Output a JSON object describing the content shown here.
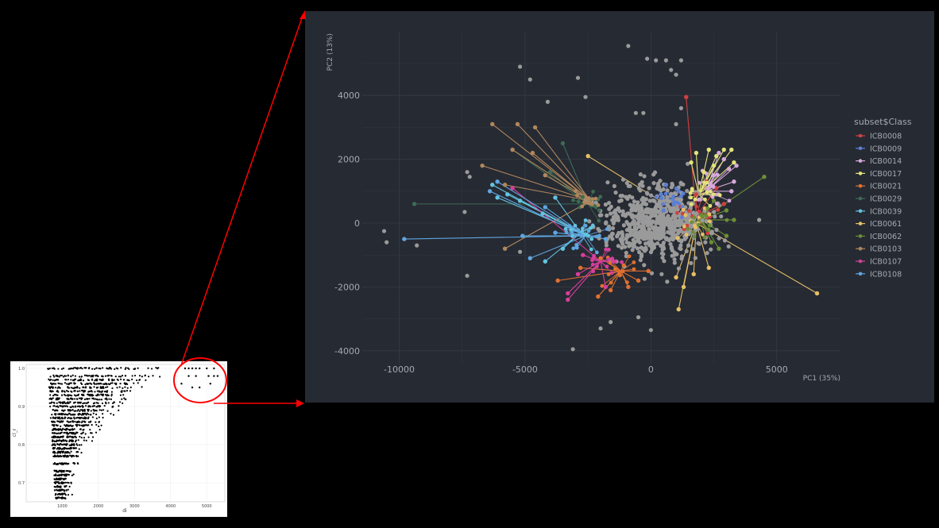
{
  "colors": {
    "page_background": "#000000",
    "right_panel_background": "#262a33",
    "right_panel_grid": "#363b46",
    "right_text": "#a6a9b0",
    "left_panel_background": "#ffffff",
    "left_panel_grid": "#eeeeee",
    "left_points": "#000000",
    "annotation": "#ff0000",
    "grey_points": "#9a9a9a"
  },
  "annotation": {
    "description": "red circle on small plot with arrows pointing to zoomed PCA plot"
  },
  "chart_data": [
    {
      "id": "small-scatter",
      "type": "scatter",
      "title": "",
      "xlabel": "di",
      "ylabel": "cl_r",
      "xlim": [
        0,
        5500
      ],
      "ylim": [
        0.65,
        1.0
      ],
      "xticks": [
        "1000",
        "2000",
        "3000",
        "4000",
        "5000"
      ],
      "xtick_values": [
        1000,
        2000,
        3000,
        4000,
        5000
      ],
      "yticks": [
        "0.7",
        "0.8",
        "0.9",
        "1.0"
      ],
      "ytick_values": [
        0.7,
        0.8,
        0.9,
        1.0
      ],
      "grid": true,
      "points_description": "dense black point cloud rising from lower-left (x~600-1500, y~0.66-0.75) to upper band near y~0.95-1.0 spanning x~700-5200",
      "highlight_points": [
        {
          "x": 4400,
          "y": 1.0
        },
        {
          "x": 4500,
          "y": 1.0
        },
        {
          "x": 4600,
          "y": 1.0
        },
        {
          "x": 4700,
          "y": 1.0
        },
        {
          "x": 4800,
          "y": 1.0
        },
        {
          "x": 5000,
          "y": 1.0
        },
        {
          "x": 5200,
          "y": 1.0
        },
        {
          "x": 4500,
          "y": 0.98
        },
        {
          "x": 4700,
          "y": 0.98
        },
        {
          "x": 5050,
          "y": 0.98
        },
        {
          "x": 5200,
          "y": 0.98
        },
        {
          "x": 5300,
          "y": 0.98
        },
        {
          "x": 4300,
          "y": 0.96
        },
        {
          "x": 4600,
          "y": 0.95
        },
        {
          "x": 4800,
          "y": 0.95
        },
        {
          "x": 5100,
          "y": 0.96
        }
      ]
    },
    {
      "id": "pca-plot",
      "type": "scatter",
      "title": "",
      "xlabel": "PC1 (35%)",
      "ylabel": "PC2 (13%)",
      "xlim": [
        -11500,
        7500
      ],
      "ylim": [
        -4400,
        5600
      ],
      "xticks": [
        "-10000",
        "-5000",
        "0",
        "5000"
      ],
      "xtick_values": [
        -10000,
        -5000,
        0,
        5000
      ],
      "yticks": [
        "-4000",
        "-2000",
        "0",
        "2000",
        "4000"
      ],
      "ytick_values": [
        -4000,
        -2000,
        0,
        2000,
        4000
      ],
      "grid": true,
      "legend": {
        "title": "subset$Class",
        "placement": "right"
      },
      "outlier_grey_points": [
        {
          "x": -10600,
          "y": -250
        },
        {
          "x": -10500,
          "y": -600
        },
        {
          "x": -9300,
          "y": -700
        },
        {
          "x": -7300,
          "y": 1600
        },
        {
          "x": -7200,
          "y": 1450
        },
        {
          "x": -7300,
          "y": -1650
        },
        {
          "x": -7400,
          "y": 350
        },
        {
          "x": -5200,
          "y": 4900
        },
        {
          "x": -4800,
          "y": 4500
        },
        {
          "x": -2900,
          "y": 4550
        },
        {
          "x": -2600,
          "y": 3950
        },
        {
          "x": -4100,
          "y": 3800
        },
        {
          "x": -3100,
          "y": -3950
        },
        {
          "x": -1600,
          "y": -3100
        },
        {
          "x": -900,
          "y": 5550
        },
        {
          "x": -150,
          "y": 5150
        },
        {
          "x": 200,
          "y": 5100
        },
        {
          "x": 600,
          "y": 5100
        },
        {
          "x": 1200,
          "y": 5100
        },
        {
          "x": 800,
          "y": 4800
        },
        {
          "x": 1000,
          "y": 4650
        },
        {
          "x": -600,
          "y": 3450
        },
        {
          "x": -300,
          "y": 3450
        },
        {
          "x": 1200,
          "y": 3600
        },
        {
          "x": 1000,
          "y": 3100
        },
        {
          "x": 4300,
          "y": 100
        },
        {
          "x": 0,
          "y": -3350
        },
        {
          "x": -500,
          "y": -2950
        },
        {
          "x": -5200,
          "y": -900
        },
        {
          "x": -2000,
          "y": -3300
        }
      ],
      "series": [
        {
          "name": "ICB0008",
          "color": "#d04040",
          "centroid": {
            "x": 1800,
            "y": 200
          },
          "points": [
            {
              "x": 1400,
              "y": 3950
            },
            {
              "x": 2600,
              "y": 1100
            },
            {
              "x": 2900,
              "y": 600
            },
            {
              "x": 2200,
              "y": 1300
            },
            {
              "x": 1800,
              "y": 900
            }
          ]
        },
        {
          "name": "ICB0009",
          "color": "#5b7fd6",
          "centroid": {
            "x": 800,
            "y": 700
          },
          "points": [
            {
              "x": 400,
              "y": 900
            },
            {
              "x": 600,
              "y": 1200
            },
            {
              "x": 1100,
              "y": 1000
            },
            {
              "x": 900,
              "y": 600
            },
            {
              "x": 500,
              "y": 400
            }
          ]
        },
        {
          "name": "ICB0014",
          "color": "#d7a9dc",
          "centroid": {
            "x": 2200,
            "y": 1000
          },
          "points": [
            {
              "x": 2900,
              "y": 2000
            },
            {
              "x": 3100,
              "y": 1700
            },
            {
              "x": 3300,
              "y": 1300
            },
            {
              "x": 3400,
              "y": 1800
            },
            {
              "x": 2700,
              "y": 2200
            },
            {
              "x": 3200,
              "y": 1000
            },
            {
              "x": 2500,
              "y": 1500
            }
          ]
        },
        {
          "name": "ICB0017",
          "color": "#e3e37a",
          "centroid": {
            "x": 1900,
            "y": 900
          },
          "points": [
            {
              "x": 2300,
              "y": 2300
            },
            {
              "x": 2600,
              "y": 2100
            },
            {
              "x": 2900,
              "y": 2300
            },
            {
              "x": 3200,
              "y": 2300
            },
            {
              "x": 1800,
              "y": 2200
            },
            {
              "x": 3300,
              "y": 1900
            },
            {
              "x": 2100,
              "y": 1600
            },
            {
              "x": 1600,
              "y": 1900
            },
            {
              "x": 2500,
              "y": 1800
            }
          ]
        },
        {
          "name": "ICB0021",
          "color": "#e07030",
          "centroid": {
            "x": -1200,
            "y": -1500
          },
          "points": [
            {
              "x": -3700,
              "y": -1800
            },
            {
              "x": -2800,
              "y": -1400
            },
            {
              "x": -2100,
              "y": -2300
            },
            {
              "x": -1600,
              "y": -2100
            },
            {
              "x": -500,
              "y": -1800
            },
            {
              "x": -100,
              "y": -1500
            },
            {
              "x": -2000,
              "y": -1100
            },
            {
              "x": -900,
              "y": -2000
            }
          ]
        },
        {
          "name": "ICB0029",
          "color": "#3d6b54",
          "centroid": {
            "x": -2500,
            "y": 600
          },
          "points": [
            {
              "x": -9400,
              "y": 600
            },
            {
              "x": -3500,
              "y": 2500
            },
            {
              "x": -5500,
              "y": 2300
            },
            {
              "x": -4000,
              "y": 1600
            }
          ]
        },
        {
          "name": "ICB0039",
          "color": "#63c4e0",
          "centroid": {
            "x": -2800,
            "y": -300
          },
          "points": [
            {
              "x": -6300,
              "y": 1200
            },
            {
              "x": -6100,
              "y": 800
            },
            {
              "x": -5200,
              "y": 700
            },
            {
              "x": -4300,
              "y": 300
            },
            {
              "x": -3800,
              "y": 800
            },
            {
              "x": -4200,
              "y": -1200
            },
            {
              "x": -3500,
              "y": -800
            },
            {
              "x": -5700,
              "y": 900
            }
          ]
        },
        {
          "name": "ICB0061",
          "color": "#e6c065",
          "centroid": {
            "x": 1800,
            "y": 0
          },
          "points": [
            {
              "x": 6600,
              "y": -2200
            },
            {
              "x": -2500,
              "y": 2100
            },
            {
              "x": 1100,
              "y": -2700
            },
            {
              "x": 1300,
              "y": -2000
            },
            {
              "x": 1700,
              "y": -1600
            },
            {
              "x": 2300,
              "y": -1400
            },
            {
              "x": 1000,
              "y": -1700
            }
          ]
        },
        {
          "name": "ICB0062",
          "color": "#6b8f35",
          "centroid": {
            "x": 2000,
            "y": 100
          },
          "points": [
            {
              "x": 4500,
              "y": 1450
            },
            {
              "x": 3000,
              "y": -400
            },
            {
              "x": 2700,
              "y": -800
            },
            {
              "x": 3300,
              "y": 100
            },
            {
              "x": 2400,
              "y": -600
            },
            {
              "x": 3000,
              "y": 400
            },
            {
              "x": 2500,
              "y": 700
            }
          ]
        },
        {
          "name": "ICB0103",
          "color": "#b0875c",
          "centroid": {
            "x": -2400,
            "y": 700
          },
          "points": [
            {
              "x": -6300,
              "y": 3100
            },
            {
              "x": -5300,
              "y": 3100
            },
            {
              "x": -4600,
              "y": 3000
            },
            {
              "x": -6700,
              "y": 1800
            },
            {
              "x": -5800,
              "y": 1200
            },
            {
              "x": -5500,
              "y": 2300
            },
            {
              "x": -4700,
              "y": 2200
            },
            {
              "x": -5800,
              "y": -800
            },
            {
              "x": -4200,
              "y": 1500
            }
          ]
        },
        {
          "name": "ICB0107",
          "color": "#d63f9a",
          "centroid": {
            "x": -2000,
            "y": -1200
          },
          "points": [
            {
              "x": -3300,
              "y": -2400
            },
            {
              "x": -3300,
              "y": -2200
            },
            {
              "x": -2900,
              "y": -1600
            },
            {
              "x": -5500,
              "y": 1100
            },
            {
              "x": -2700,
              "y": -1000
            },
            {
              "x": -1800,
              "y": -2000
            },
            {
              "x": -1500,
              "y": -1200
            }
          ]
        },
        {
          "name": "ICB0108",
          "color": "#5fa6e0",
          "centroid": {
            "x": -2600,
            "y": -400
          },
          "points": [
            {
              "x": -9800,
              "y": -500
            },
            {
              "x": -6100,
              "y": 1300
            },
            {
              "x": -6400,
              "y": 1000
            },
            {
              "x": -5100,
              "y": -400
            },
            {
              "x": -4800,
              "y": -1100
            },
            {
              "x": -4200,
              "y": 500
            },
            {
              "x": -3800,
              "y": -300
            },
            {
              "x": -1800,
              "y": -500
            }
          ]
        }
      ]
    }
  ]
}
